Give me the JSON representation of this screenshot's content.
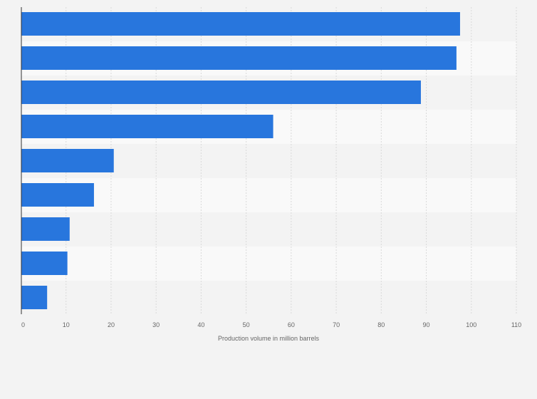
{
  "chart_data": {
    "type": "bar",
    "orientation": "horizontal",
    "title": "",
    "xlabel": "Production volume in million barrels",
    "ylabel": "",
    "categories": [
      "",
      "",
      "",
      "",
      "",
      "",
      "",
      "",
      ""
    ],
    "values": [
      97.5,
      96.7,
      88.8,
      56.0,
      20.6,
      16.2,
      10.8,
      10.3,
      5.8
    ],
    "xlim": [
      0,
      110
    ],
    "xticks": [
      0,
      10,
      20,
      30,
      40,
      50,
      60,
      70,
      80,
      90,
      100,
      110
    ],
    "grid": true,
    "legend": "none",
    "colors": {
      "bar": "#2876dd",
      "band_a": "#f3f3f3",
      "band_b": "#f9f9f9",
      "grid": "#d9d9d9",
      "axis": "#333333"
    }
  }
}
